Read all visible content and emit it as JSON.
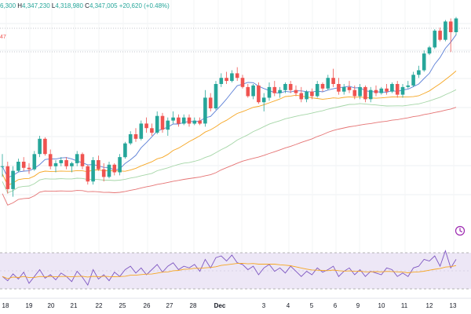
{
  "header": {
    "ohlc": [
      {
        "key": "",
        "value": "6,300"
      },
      {
        "key": "H",
        "value": "4,347,230"
      },
      {
        "key": "L",
        "value": "4,318,980"
      },
      {
        "key": "C",
        "value": "4,347,005"
      },
      {
        "key": "",
        "value": "+20,620 (+0.48%)"
      }
    ],
    "side_value": "47"
  },
  "colors": {
    "up": "#26a69a",
    "down": "#ef5350",
    "ma_fast": "#5b7fd6",
    "ma_mid": "#f6a623",
    "ma_slow": "#a5d6a7",
    "ma_long": "#e57373",
    "rsi_line": "#7e57c2",
    "rsi_ma": "#f6a623",
    "rsi_band": "#ede7f6"
  },
  "x_axis": {
    "labels": [
      "18",
      "19",
      "20",
      "21",
      "22",
      "25",
      "26",
      "27",
      "28",
      "Dec",
      "3",
      "4",
      "5",
      "6",
      "9",
      "10",
      "11",
      "12",
      "13"
    ]
  },
  "icons": {
    "alert": "alert-clock-icon"
  },
  "chart_data": {
    "type": "candlestick",
    "title": "",
    "xlabel": "",
    "ylabel": "",
    "candles": [
      [
        0.3,
        0.38,
        0.23,
        0.3
      ],
      [
        0.3,
        0.33,
        0.12,
        0.15
      ],
      [
        0.15,
        0.3,
        0.1,
        0.27
      ],
      [
        0.27,
        0.35,
        0.26,
        0.33
      ],
      [
        0.33,
        0.36,
        0.27,
        0.29
      ],
      [
        0.29,
        0.32,
        0.25,
        0.28
      ],
      [
        0.28,
        0.4,
        0.27,
        0.38
      ],
      [
        0.38,
        0.5,
        0.36,
        0.48
      ],
      [
        0.48,
        0.49,
        0.37,
        0.38
      ],
      [
        0.38,
        0.41,
        0.28,
        0.3
      ],
      [
        0.3,
        0.34,
        0.26,
        0.32
      ],
      [
        0.32,
        0.36,
        0.3,
        0.34
      ],
      [
        0.34,
        0.36,
        0.28,
        0.3
      ],
      [
        0.3,
        0.33,
        0.26,
        0.32
      ],
      [
        0.32,
        0.4,
        0.3,
        0.38
      ],
      [
        0.38,
        0.39,
        0.28,
        0.3
      ],
      [
        0.3,
        0.31,
        0.18,
        0.2
      ],
      [
        0.2,
        0.36,
        0.18,
        0.34
      ],
      [
        0.34,
        0.37,
        0.27,
        0.28
      ],
      [
        0.28,
        0.32,
        0.2,
        0.23
      ],
      [
        0.23,
        0.33,
        0.22,
        0.31
      ],
      [
        0.31,
        0.32,
        0.24,
        0.26
      ],
      [
        0.26,
        0.38,
        0.24,
        0.36
      ],
      [
        0.36,
        0.46,
        0.35,
        0.45
      ],
      [
        0.45,
        0.53,
        0.44,
        0.51
      ],
      [
        0.51,
        0.55,
        0.46,
        0.48
      ],
      [
        0.48,
        0.6,
        0.47,
        0.58
      ],
      [
        0.58,
        0.62,
        0.52,
        0.55
      ],
      [
        0.55,
        0.58,
        0.5,
        0.52
      ],
      [
        0.52,
        0.66,
        0.51,
        0.63
      ],
      [
        0.63,
        0.65,
        0.52,
        0.54
      ],
      [
        0.54,
        0.62,
        0.5,
        0.6
      ],
      [
        0.6,
        0.66,
        0.58,
        0.62
      ],
      [
        0.62,
        0.64,
        0.56,
        0.58
      ],
      [
        0.58,
        0.64,
        0.57,
        0.62
      ],
      [
        0.62,
        0.64,
        0.56,
        0.58
      ],
      [
        0.58,
        0.62,
        0.57,
        0.6
      ],
      [
        0.6,
        0.62,
        0.57,
        0.58
      ],
      [
        0.58,
        0.8,
        0.56,
        0.75
      ],
      [
        0.75,
        0.78,
        0.66,
        0.68
      ],
      [
        0.68,
        0.86,
        0.67,
        0.84
      ],
      [
        0.84,
        0.91,
        0.82,
        0.88
      ],
      [
        0.88,
        0.92,
        0.84,
        0.86
      ],
      [
        0.86,
        0.93,
        0.85,
        0.91
      ],
      [
        0.91,
        0.95,
        0.86,
        0.88
      ],
      [
        0.88,
        0.9,
        0.81,
        0.82
      ],
      [
        0.82,
        0.84,
        0.75,
        0.76
      ],
      [
        0.76,
        0.84,
        0.74,
        0.83
      ],
      [
        0.83,
        0.85,
        0.71,
        0.72
      ],
      [
        0.72,
        0.78,
        0.66,
        0.75
      ],
      [
        0.75,
        0.85,
        0.73,
        0.82
      ],
      [
        0.82,
        0.86,
        0.76,
        0.78
      ],
      [
        0.78,
        0.82,
        0.75,
        0.8
      ],
      [
        0.8,
        0.85,
        0.78,
        0.84
      ],
      [
        0.84,
        0.86,
        0.78,
        0.8
      ],
      [
        0.8,
        0.83,
        0.76,
        0.78
      ],
      [
        0.78,
        0.82,
        0.72,
        0.74
      ],
      [
        0.74,
        0.8,
        0.72,
        0.79
      ],
      [
        0.79,
        0.81,
        0.74,
        0.76
      ],
      [
        0.76,
        0.86,
        0.75,
        0.84
      ],
      [
        0.84,
        0.85,
        0.79,
        0.81
      ],
      [
        0.81,
        0.9,
        0.8,
        0.88
      ],
      [
        0.88,
        0.94,
        0.82,
        0.84
      ],
      [
        0.84,
        0.88,
        0.77,
        0.79
      ],
      [
        0.79,
        0.84,
        0.77,
        0.82
      ],
      [
        0.82,
        0.86,
        0.78,
        0.8
      ],
      [
        0.8,
        0.83,
        0.74,
        0.76
      ],
      [
        0.76,
        0.84,
        0.74,
        0.82
      ],
      [
        0.82,
        0.83,
        0.72,
        0.74
      ],
      [
        0.74,
        0.82,
        0.72,
        0.8
      ],
      [
        0.8,
        0.83,
        0.76,
        0.78
      ],
      [
        0.78,
        0.82,
        0.77,
        0.81
      ],
      [
        0.81,
        0.84,
        0.77,
        0.79
      ],
      [
        0.79,
        0.85,
        0.78,
        0.84
      ],
      [
        0.84,
        0.86,
        0.75,
        0.77
      ],
      [
        0.77,
        0.84,
        0.75,
        0.82
      ],
      [
        0.82,
        0.86,
        0.81,
        0.83
      ],
      [
        0.83,
        0.92,
        0.82,
        0.9
      ],
      [
        0.9,
        0.96,
        0.88,
        0.93
      ],
      [
        0.93,
        1.06,
        0.92,
        1.04
      ],
      [
        1.04,
        1.09,
        1.03,
        1.08
      ],
      [
        1.08,
        1.2,
        1.07,
        1.19
      ],
      [
        1.19,
        1.21,
        1.12,
        1.13
      ],
      [
        1.13,
        1.26,
        1.12,
        1.25
      ],
      [
        1.25,
        1.27,
        1.05,
        1.18
      ],
      [
        1.18,
        1.28,
        1.16,
        1.27
      ]
    ],
    "rsi": [
      50,
      45,
      53,
      47,
      55,
      42,
      50,
      58,
      48,
      52,
      46,
      54,
      50,
      44,
      56,
      49,
      40,
      58,
      47,
      52,
      45,
      55,
      50,
      58,
      62,
      54,
      60,
      52,
      58,
      64,
      55,
      62,
      66,
      58,
      62,
      60,
      64,
      56,
      70,
      60,
      72,
      74,
      68,
      75,
      66,
      64,
      58,
      62,
      52,
      60,
      64,
      56,
      60,
      54,
      62,
      56,
      50,
      56,
      52,
      60,
      55,
      58,
      62,
      50,
      56,
      60,
      52,
      58,
      50,
      56,
      54,
      52,
      60,
      58,
      50,
      54,
      50,
      60,
      62,
      70,
      68,
      74,
      62,
      80,
      60,
      70
    ]
  }
}
